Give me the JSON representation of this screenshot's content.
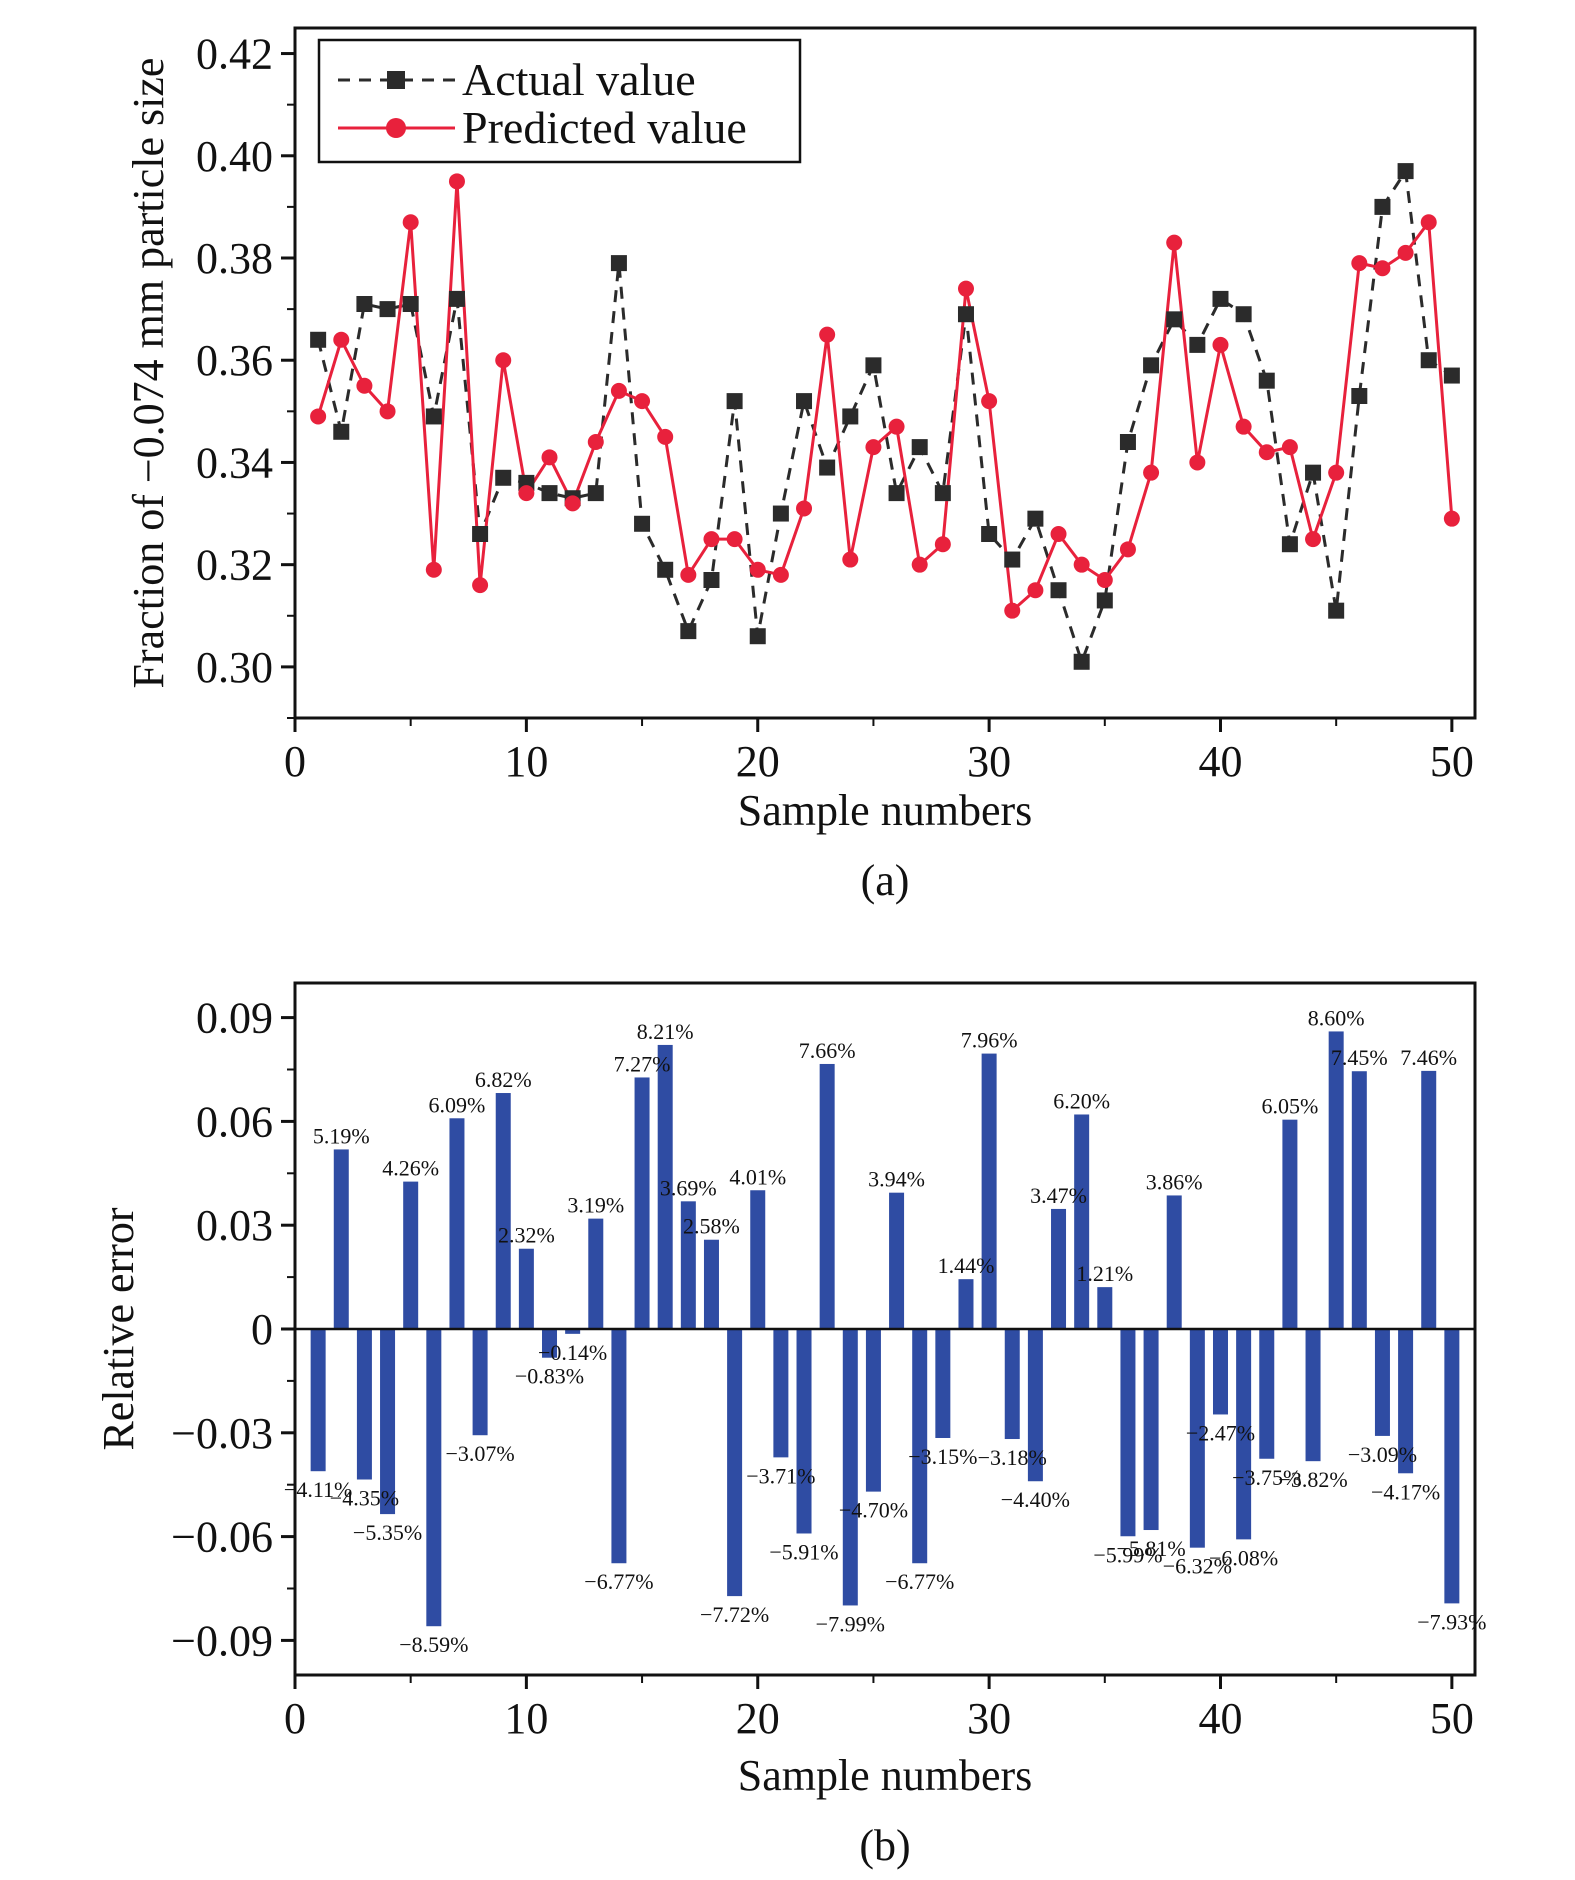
{
  "chart_data": [
    {
      "type": "line",
      "panel_label": "(a)",
      "xlabel": "Sample numbers",
      "ylabel": "Fraction of −0.074 mm particle size",
      "xlim": [
        0,
        51
      ],
      "ylim": [
        0.29,
        0.425
      ],
      "xticks": [
        0,
        10,
        20,
        30,
        40,
        50
      ],
      "xtick_labels": [
        "0",
        "10",
        "20",
        "30",
        "40",
        "50"
      ],
      "yticks": [
        0.3,
        0.32,
        0.34,
        0.36,
        0.38,
        0.4,
        0.42
      ],
      "ytick_labels": [
        "0.30",
        "0.32",
        "0.34",
        "0.36",
        "0.38",
        "0.40",
        "0.42"
      ],
      "grid": false,
      "legend_position": "top-left",
      "x": [
        1,
        2,
        3,
        4,
        5,
        6,
        7,
        8,
        9,
        10,
        11,
        12,
        13,
        14,
        15,
        16,
        17,
        18,
        19,
        20,
        21,
        22,
        23,
        24,
        25,
        26,
        27,
        28,
        29,
        30,
        31,
        32,
        33,
        34,
        35,
        36,
        37,
        38,
        39,
        40,
        41,
        42,
        43,
        44,
        45,
        46,
        47,
        48,
        49,
        50
      ],
      "series": [
        {
          "name": "Actual value",
          "color": "#2b2b2b",
          "style": "dashed",
          "marker": "square",
          "values": [
            0.364,
            0.346,
            0.371,
            0.37,
            0.371,
            0.349,
            0.372,
            0.326,
            0.337,
            0.336,
            0.334,
            0.333,
            0.334,
            0.379,
            0.328,
            0.319,
            0.307,
            0.317,
            0.352,
            0.306,
            0.33,
            0.352,
            0.339,
            0.349,
            0.359,
            0.334,
            0.343,
            0.334,
            0.369,
            0.326,
            0.321,
            0.329,
            0.315,
            0.301,
            0.313,
            0.344,
            0.359,
            0.368,
            0.363,
            0.372,
            0.369,
            0.356,
            0.324,
            0.338,
            0.311,
            0.353,
            0.39,
            0.397,
            0.36,
            0.357
          ]
        },
        {
          "name": "Predicted value",
          "color": "#e8213c",
          "style": "solid",
          "marker": "circle",
          "values": [
            0.349,
            0.364,
            0.355,
            0.35,
            0.387,
            0.319,
            0.395,
            0.316,
            0.36,
            0.334,
            0.341,
            0.332,
            0.344,
            0.354,
            0.352,
            0.345,
            0.318,
            0.325,
            0.325,
            0.319,
            0.318,
            0.331,
            0.365,
            0.321,
            0.343,
            0.347,
            0.32,
            0.324,
            0.374,
            0.352,
            0.311,
            0.315,
            0.326,
            0.32,
            0.317,
            0.323,
            0.338,
            0.383,
            0.34,
            0.363,
            0.347,
            0.342,
            0.343,
            0.325,
            0.338,
            0.379,
            0.378,
            0.381,
            0.387,
            0.329
          ]
        }
      ]
    },
    {
      "type": "bar",
      "panel_label": "(b)",
      "xlabel": "Sample numbers",
      "ylabel": "Relative error",
      "xlim": [
        0,
        51
      ],
      "ylim": [
        -0.1,
        0.1
      ],
      "xticks": [
        0,
        10,
        20,
        30,
        40,
        50
      ],
      "xtick_labels": [
        "0",
        "10",
        "20",
        "30",
        "40",
        "50"
      ],
      "yticks": [
        -0.09,
        -0.06,
        -0.03,
        0,
        0.03,
        0.06,
        0.09
      ],
      "ytick_labels": [
        "−0.09",
        "−0.06",
        "−0.03",
        "0",
        "0.03",
        "0.06",
        "0.09"
      ],
      "grid": false,
      "bar_color": "#2f4ca3",
      "x": [
        1,
        2,
        3,
        4,
        5,
        6,
        7,
        8,
        9,
        10,
        11,
        12,
        13,
        14,
        15,
        16,
        17,
        18,
        19,
        20,
        21,
        22,
        23,
        24,
        25,
        26,
        27,
        28,
        29,
        30,
        31,
        32,
        33,
        34,
        35,
        36,
        37,
        38,
        39,
        40,
        41,
        42,
        43,
        44,
        45,
        46,
        47,
        48,
        49,
        50
      ],
      "values": [
        -0.0411,
        0.0519,
        -0.0435,
        -0.0535,
        0.0426,
        -0.0859,
        0.0609,
        -0.0307,
        0.0682,
        0.0232,
        -0.0083,
        -0.0014,
        0.0319,
        -0.0677,
        0.0727,
        0.0821,
        0.0369,
        0.0258,
        -0.0772,
        0.0401,
        -0.0371,
        -0.0591,
        0.0766,
        -0.0799,
        -0.047,
        0.0394,
        -0.0677,
        -0.0315,
        0.0144,
        0.0796,
        -0.0318,
        -0.044,
        0.0347,
        0.062,
        0.0121,
        -0.0599,
        -0.0581,
        0.0386,
        -0.0632,
        -0.0247,
        -0.0608,
        -0.0375,
        0.0605,
        -0.0382,
        0.086,
        0.0745,
        -0.0309,
        -0.0417,
        0.0746,
        -0.0793
      ],
      "labels": [
        {
          "x": 1,
          "text": "−4.11%"
        },
        {
          "x": 2,
          "text": "5.19%"
        },
        {
          "x": 3,
          "text": "−4.35%"
        },
        {
          "x": 4,
          "text": "−5.35%"
        },
        {
          "x": 5,
          "text": "4.26%"
        },
        {
          "x": 6,
          "text": "−8.59%"
        },
        {
          "x": 7,
          "text": "6.09%"
        },
        {
          "x": 8,
          "text": "−3.07%"
        },
        {
          "x": 9,
          "text": "6.82%"
        },
        {
          "x": 10,
          "text": "2.32%"
        },
        {
          "x": 11,
          "text": "−0.83%"
        },
        {
          "x": 12,
          "text": "−0.14%"
        },
        {
          "x": 13,
          "text": "3.19%"
        },
        {
          "x": 14,
          "text": "−6.77%"
        },
        {
          "x": 15,
          "text": "7.27%"
        },
        {
          "x": 16,
          "text": "8.21%"
        },
        {
          "x": 17,
          "text": "3.69%"
        },
        {
          "x": 18,
          "text": "2.58%"
        },
        {
          "x": 19,
          "text": "−7.72%"
        },
        {
          "x": 20,
          "text": "4.01%"
        },
        {
          "x": 21,
          "text": "−3.71%"
        },
        {
          "x": 22,
          "text": "−5.91%"
        },
        {
          "x": 23,
          "text": "7.66%"
        },
        {
          "x": 24,
          "text": "−7.99%"
        },
        {
          "x": 25,
          "text": "−4.70%"
        },
        {
          "x": 26,
          "text": "3.94%"
        },
        {
          "x": 27,
          "text": "−6.77%"
        },
        {
          "x": 28,
          "text": "−3.15%"
        },
        {
          "x": 29,
          "text": "1.44%"
        },
        {
          "x": 30,
          "text": "7.96%"
        },
        {
          "x": 31,
          "text": "−3.18%"
        },
        {
          "x": 32,
          "text": "−4.40%"
        },
        {
          "x": 33,
          "text": "3.47%"
        },
        {
          "x": 34,
          "text": "6.20%"
        },
        {
          "x": 35,
          "text": "1.21%"
        },
        {
          "x": 36,
          "text": "−5.99%"
        },
        {
          "x": 37,
          "text": "−5.81%"
        },
        {
          "x": 38,
          "text": "3.86%"
        },
        {
          "x": 39,
          "text": "−6.32%"
        },
        {
          "x": 40,
          "text": "−2.47%"
        },
        {
          "x": 41,
          "text": "−6.08%"
        },
        {
          "x": 42,
          "text": "−3.75%"
        },
        {
          "x": 43,
          "text": "6.05%"
        },
        {
          "x": 44,
          "text": "−3.82%"
        },
        {
          "x": 45,
          "text": "8.60%"
        },
        {
          "x": 46,
          "text": "7.45%"
        },
        {
          "x": 47,
          "text": "−3.09%"
        },
        {
          "x": 48,
          "text": "−4.17%"
        },
        {
          "x": 49,
          "text": "7.46%"
        },
        {
          "x": 50,
          "text": "−7.93%"
        }
      ]
    }
  ]
}
